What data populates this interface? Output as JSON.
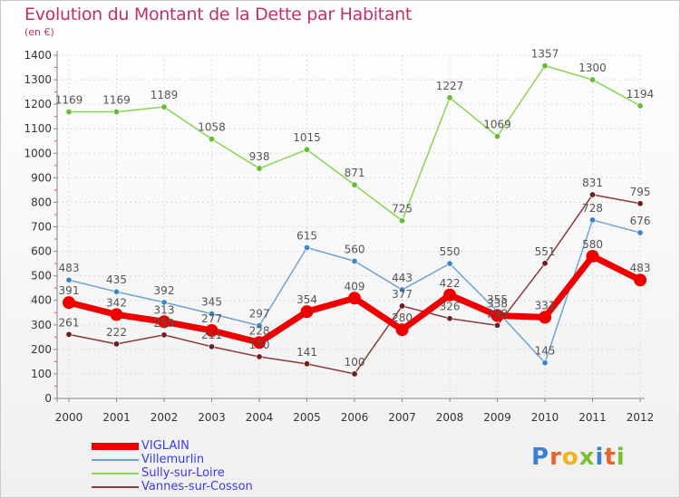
{
  "title": "Evolution du Montant de la Dette par Habitant",
  "unit_label": "(en €)",
  "logo": {
    "text": "Proxiti",
    "letter_colors": [
      "#3a7fd5",
      "#e8622a",
      "#f2b21b",
      "#7bbf2f",
      "#3a7fd5",
      "#e8622a",
      "#7bbf2f"
    ]
  },
  "chart_data": {
    "type": "line",
    "x": [
      "2000",
      "2001",
      "2002",
      "2003",
      "2004",
      "2005",
      "2006",
      "2007",
      "2008",
      "2009",
      "2010",
      "2011",
      "2012"
    ],
    "ylim": [
      0,
      1400
    ],
    "yticks": [
      0,
      100,
      200,
      300,
      400,
      500,
      600,
      700,
      800,
      900,
      1000,
      1100,
      1200,
      1300,
      1400
    ],
    "grid": true,
    "legend_position": "bottom-left",
    "series": [
      {
        "name": "Sully-sur-Loire",
        "color": "#88d550",
        "marker_color": "#66bb33",
        "values": [
          1169,
          1169,
          1189,
          1058,
          938,
          1015,
          871,
          725,
          1227,
          1069,
          1357,
          1300,
          1194
        ],
        "labels": [
          "1169",
          "1169",
          "1189",
          "1058",
          "938",
          "1015",
          "871",
          "725",
          "1227",
          "1069",
          "1357",
          "1300",
          "1194"
        ]
      },
      {
        "name": "Villemurlin",
        "color": "#6fa3d3",
        "marker_color": "#3d85c6",
        "values": [
          483,
          435,
          392,
          345,
          297,
          615,
          560,
          443,
          550,
          355,
          145,
          728,
          676
        ],
        "labels": [
          "483",
          "435",
          "392",
          "345",
          "297",
          "615",
          "560",
          "443",
          "550",
          "355",
          "145",
          "728",
          "676"
        ]
      },
      {
        "name": "Vannes-sur-Cosson",
        "color": "#8b3a3a",
        "marker_color": "#6b1f1f",
        "values": [
          261,
          222,
          259,
          211,
          170,
          141,
          100,
          377,
          326,
          298,
          551,
          831,
          795
        ],
        "labels": [
          "261",
          "222",
          "259",
          "211",
          "170",
          "141",
          "100",
          "377",
          "326",
          "298",
          "551",
          "831",
          "795"
        ]
      },
      {
        "name": "VIGLAIN",
        "color": "#ee0000",
        "marker_color": "#ee0000",
        "values": [
          391,
          342,
          313,
          277,
          228,
          354,
          409,
          280,
          422,
          338,
          331,
          580,
          483
        ],
        "labels": [
          "391",
          "342",
          "313",
          "277",
          "228",
          "354",
          "409",
          "280",
          "422",
          "338",
          "331",
          "580",
          "483"
        ]
      }
    ],
    "legend": [
      {
        "name": "VIGLAIN",
        "color": "#ee0000",
        "width": 8
      },
      {
        "name": "Villemurlin",
        "color": "#6fa3d3",
        "width": 2
      },
      {
        "name": "Sully-sur-Loire",
        "color": "#88d550",
        "width": 2
      },
      {
        "name": "Vannes-sur-Cosson",
        "color": "#8b3a3a",
        "width": 2
      }
    ]
  }
}
